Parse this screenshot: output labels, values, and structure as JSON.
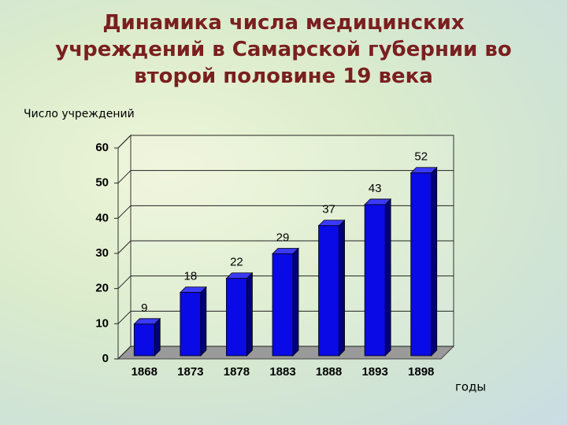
{
  "chart_data": {
    "type": "bar3d",
    "title": "Динамика числа медицинских учреждений в Самарской губернии во второй половине 19 века",
    "y_label": "Число учреждений",
    "x_label": "годы",
    "categories": [
      "1868",
      "1873",
      "1878",
      "1883",
      "1888",
      "1893",
      "1898"
    ],
    "values": [
      9,
      18,
      22,
      29,
      37,
      43,
      52
    ],
    "color": "#0a0ae6",
    "ylim": [
      0,
      60
    ],
    "yticks": [
      0,
      10,
      20,
      30,
      40,
      50,
      60
    ],
    "grid": true
  }
}
